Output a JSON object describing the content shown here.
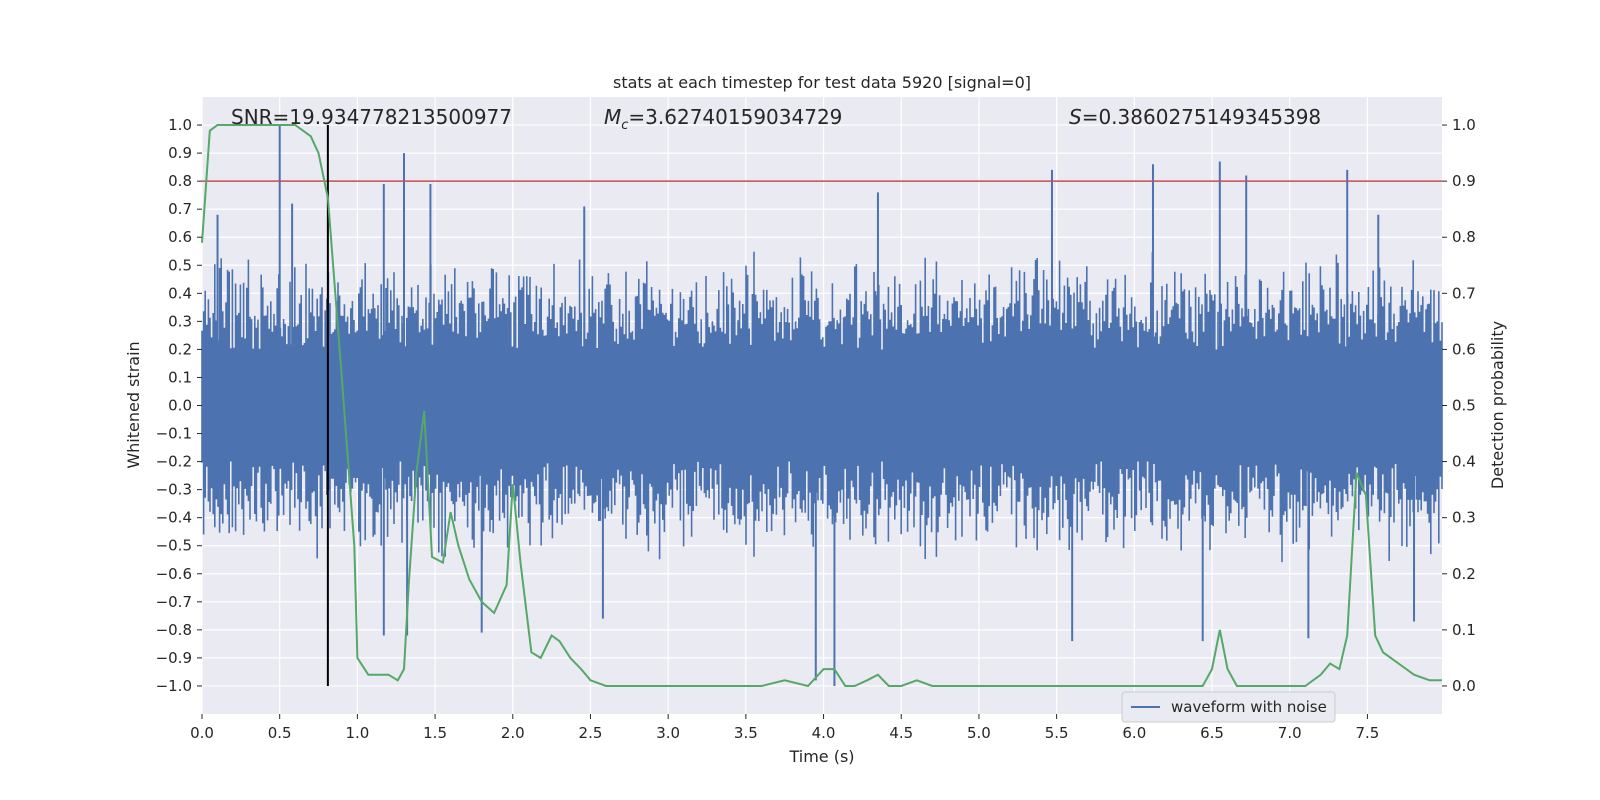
{
  "chart_data": {
    "type": "line",
    "title": "stats at each timestep for test data 5920 [signal=0]",
    "xlabel": "Time (s)",
    "ylabel_left": "Whitened strain",
    "ylabel_right": "Detection probability",
    "xlim": [
      0.0,
      7.98
    ],
    "ylim_left": [
      -1.1,
      1.1
    ],
    "ylim_right": [
      -0.05,
      1.05
    ],
    "x_ticks": [
      "0.0",
      "0.5",
      "1.0",
      "1.5",
      "2.0",
      "2.5",
      "3.0",
      "3.5",
      "4.0",
      "4.5",
      "5.0",
      "5.5",
      "6.0",
      "6.5",
      "7.0",
      "7.5"
    ],
    "y_ticks_left": [
      "1.0",
      "0.9",
      "0.8",
      "0.7",
      "0.6",
      "0.5",
      "0.4",
      "0.3",
      "0.2",
      "0.1",
      "0.0",
      "−0.1",
      "−0.2",
      "−0.3",
      "−0.4",
      "−0.5",
      "−0.6",
      "−0.7",
      "−0.8",
      "−0.9",
      "−1.0"
    ],
    "y_ticks_right": [
      "1.0",
      "0.9",
      "0.8",
      "0.7",
      "0.6",
      "0.5",
      "0.4",
      "0.3",
      "0.2",
      "0.1",
      "0.0"
    ],
    "grid": true,
    "legend": {
      "placement": "lower-right",
      "entries": [
        "waveform with noise"
      ]
    },
    "annotations": {
      "snr": "SNR=19.934778213500977",
      "mc_symbol": "M",
      "mc_sub": "c",
      "mc_value": "=3.62740159034729",
      "s_symbol": "S",
      "s_value": "=0.3860275149345398"
    },
    "colors": {
      "background": "#eaeaf2",
      "waveform": "#4c72b0",
      "probability": "#55a868",
      "threshold": "#c44e52",
      "marker": "#000000"
    },
    "threshold_line": {
      "y_right": 0.9
    },
    "marker_line": {
      "x": 0.81,
      "y_from": -1.0,
      "y_to": 1.0
    },
    "waveform": {
      "band": [
        -0.2,
        0.2
      ],
      "envelope_typical": 0.45,
      "peaks": [
        {
          "t": 0.5,
          "y": 1.0
        },
        {
          "t": 0.58,
          "y": 0.72
        },
        {
          "t": 0.1,
          "y": 0.68
        },
        {
          "t": 1.17,
          "y": 0.79
        },
        {
          "t": 1.3,
          "y": 0.9
        },
        {
          "t": 1.47,
          "y": 0.79
        },
        {
          "t": 2.46,
          "y": 0.71
        },
        {
          "t": 4.35,
          "y": 0.76
        },
        {
          "t": 5.47,
          "y": 0.84
        },
        {
          "t": 6.12,
          "y": 0.86
        },
        {
          "t": 6.55,
          "y": 0.87
        },
        {
          "t": 6.72,
          "y": 0.82
        },
        {
          "t": 7.37,
          "y": 0.84
        },
        {
          "t": 7.57,
          "y": 0.68
        },
        {
          "t": 3.95,
          "y": -0.98
        },
        {
          "t": 4.07,
          "y": -1.0
        },
        {
          "t": 1.8,
          "y": -0.81
        },
        {
          "t": 1.17,
          "y": -0.82
        },
        {
          "t": 2.58,
          "y": -0.76
        },
        {
          "t": 5.6,
          "y": -0.84
        },
        {
          "t": 6.44,
          "y": -0.84
        },
        {
          "t": 7.12,
          "y": -0.83
        },
        {
          "t": 7.8,
          "y": -0.77
        },
        {
          "t": 1.32,
          "y": -0.82
        }
      ]
    },
    "series": [
      {
        "name": "waveform with noise",
        "axis": "left"
      },
      {
        "axis": "right",
        "x": [
          0.0,
          0.05,
          0.1,
          0.2,
          0.3,
          0.4,
          0.5,
          0.6,
          0.7,
          0.75,
          0.81,
          0.9,
          0.98,
          1.0,
          1.07,
          1.14,
          1.2,
          1.26,
          1.3,
          1.33,
          1.38,
          1.43,
          1.48,
          1.55,
          1.6,
          1.65,
          1.72,
          1.8,
          1.88,
          1.96,
          2.0,
          2.05,
          2.12,
          2.18,
          2.25,
          2.3,
          2.37,
          2.44,
          2.5,
          2.6,
          2.75,
          2.9,
          3.1,
          3.3,
          3.5,
          3.6,
          3.75,
          3.9,
          4.0,
          4.07,
          4.14,
          4.2,
          4.28,
          4.35,
          4.42,
          4.5,
          4.6,
          4.7,
          4.85,
          5.0,
          5.2,
          5.4,
          5.6,
          5.8,
          6.0,
          6.2,
          6.35,
          6.44,
          6.5,
          6.55,
          6.6,
          6.66,
          6.72,
          6.85,
          7.0,
          7.1,
          7.2,
          7.26,
          7.32,
          7.37,
          7.43,
          7.49,
          7.55,
          7.6,
          7.7,
          7.8,
          7.9,
          7.98
        ],
        "y": [
          0.79,
          0.99,
          1.0,
          1.0,
          1.0,
          1.0,
          1.0,
          1.0,
          0.98,
          0.95,
          0.87,
          0.55,
          0.25,
          0.05,
          0.02,
          0.02,
          0.02,
          0.01,
          0.03,
          0.18,
          0.38,
          0.49,
          0.23,
          0.22,
          0.31,
          0.25,
          0.19,
          0.15,
          0.13,
          0.18,
          0.36,
          0.22,
          0.06,
          0.05,
          0.09,
          0.08,
          0.05,
          0.03,
          0.01,
          0.0,
          0.0,
          0.0,
          0.0,
          0.0,
          0.0,
          0.0,
          0.01,
          0.0,
          0.03,
          0.03,
          0.0,
          0.0,
          0.01,
          0.02,
          0.0,
          0.0,
          0.01,
          0.0,
          0.0,
          0.0,
          0.0,
          0.0,
          0.0,
          0.0,
          0.0,
          0.0,
          0.0,
          0.0,
          0.03,
          0.1,
          0.03,
          0.0,
          0.0,
          0.0,
          0.0,
          0.0,
          0.02,
          0.04,
          0.03,
          0.09,
          0.38,
          0.34,
          0.09,
          0.06,
          0.04,
          0.02,
          0.01,
          0.01
        ]
      }
    ]
  }
}
